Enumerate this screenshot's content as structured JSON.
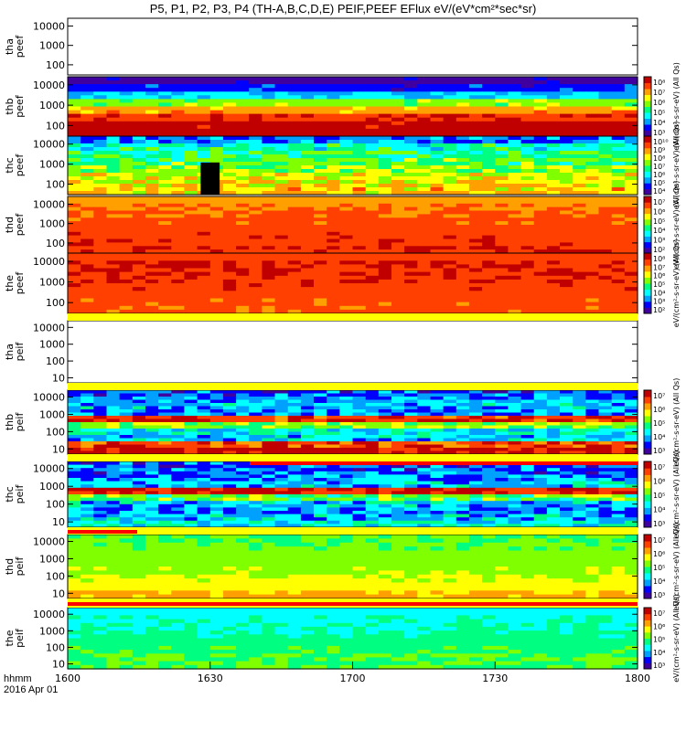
{
  "title": "P5, P1, P2, P3, P4 (TH-A,B,C,D,E) PEIF,PEEF EFlux eV/(eV*cm²*sec*sr)",
  "time_axis": {
    "row_label_1": "hhmm",
    "row_label_2": "2016 Apr 01",
    "ticks": [
      "1600",
      "1630",
      "1700",
      "1730",
      "1800"
    ]
  },
  "colors": {
    "spectrogram_scale": [
      "#ffffff",
      "#4000a0",
      "#0000ff",
      "#00a0ff",
      "#00ffff",
      "#00ff80",
      "#80ff00",
      "#ffff00",
      "#ffa000",
      "#ff4000",
      "#c00000"
    ],
    "fill_value": "#000000",
    "frame": "#000000"
  },
  "chart_data": [
    {
      "type": "heatmap",
      "panel": "tha-peef",
      "ylabel_lines": [
        "tha",
        "peef"
      ],
      "y_ticks": [
        "10000",
        "1000",
        "100"
      ],
      "ylim": [
        30,
        25000
      ],
      "yscale": "log",
      "x_range": [
        "16:00",
        "18:00"
      ],
      "has_data": false,
      "colorbar": null
    },
    {
      "type": "heatmap",
      "panel": "thb-peef",
      "ylabel_lines": [
        "thb",
        "peef"
      ],
      "y_ticks": [
        "10000",
        "1000",
        "100"
      ],
      "ylim": [
        30,
        25000
      ],
      "yscale": "log",
      "x_range": [
        "16:00",
        "18:00"
      ],
      "has_data": true,
      "profile": [
        0.05,
        0.15,
        0.3,
        0.55,
        0.75,
        0.88,
        0.95,
        0.98
      ],
      "noise": 0.06,
      "colorbar": {
        "ticks": [
          "10⁸",
          "10⁷",
          "10⁶",
          "10⁵",
          "10⁴",
          "10³"
        ],
        "label": "eV/(cm²-s-sr-eV) (All Qs)"
      }
    },
    {
      "type": "heatmap",
      "panel": "thc-peef",
      "ylabel_lines": [
        "thc",
        "peef"
      ],
      "y_ticks": [
        "10000",
        "1000",
        "100"
      ],
      "ylim": [
        30,
        25000
      ],
      "yscale": "log",
      "x_range": [
        "16:00",
        "18:00"
      ],
      "has_data": true,
      "profile": [
        0.25,
        0.4,
        0.45,
        0.5,
        0.55,
        0.62,
        0.68,
        0.7
      ],
      "noise": 0.12,
      "gap": [
        "16:28",
        "16:32"
      ],
      "colorbar": {
        "ticks": [
          "10¹⁰",
          "10⁹",
          "10⁸",
          "10⁷",
          "10⁶",
          "10⁵",
          "10⁴"
        ],
        "label": "eV/(cm²-s-sr-eV) (All Qs)"
      }
    },
    {
      "type": "heatmap",
      "panel": "thd-peef",
      "ylabel_lines": [
        "thd",
        "peef"
      ],
      "y_ticks": [
        "10000",
        "1000",
        "100"
      ],
      "ylim": [
        30,
        25000
      ],
      "yscale": "log",
      "x_range": [
        "16:00",
        "18:00"
      ],
      "has_data": true,
      "profile": [
        0.75,
        0.8,
        0.82,
        0.84,
        0.85,
        0.86,
        0.87,
        0.88
      ],
      "noise": 0.05,
      "colorbar": {
        "ticks": [
          "10⁷",
          "10⁶",
          "10⁵",
          "10⁴",
          "10³",
          "10²"
        ],
        "label": "eV/(cm²-s-sr-eV) (All Qs)"
      }
    },
    {
      "type": "heatmap",
      "panel": "the-peef",
      "ylabel_lines": [
        "the",
        "peef"
      ],
      "y_ticks": [
        "10000",
        "1000",
        "100"
      ],
      "ylim": [
        30,
        25000
      ],
      "yscale": "log",
      "x_range": [
        "16:00",
        "18:00"
      ],
      "has_data": true,
      "profile": [
        0.85,
        0.9,
        0.88,
        0.87,
        0.86,
        0.85,
        0.84,
        0.83
      ],
      "noise": 0.05,
      "colorbar": {
        "ticks": [
          "10⁸",
          "10⁷",
          "10⁶",
          "10⁵",
          "10⁴",
          "10³",
          "10²"
        ],
        "label": "eV/(cm²-s-sr-eV) (All Qs)"
      }
    },
    {
      "type": "heatmap",
      "panel": "tha-peif",
      "ylabel_lines": [
        "tha",
        "peif"
      ],
      "y_ticks": [
        "10000",
        "1000",
        "100",
        "10"
      ],
      "ylim": [
        5,
        25000
      ],
      "yscale": "log",
      "x_range": [
        "16:00",
        "18:00"
      ],
      "has_data": false,
      "colorbar": null
    },
    {
      "type": "heatmap",
      "panel": "thb-peif",
      "ylabel_lines": [
        "thb",
        "peif"
      ],
      "y_ticks": [
        "10000",
        "1000",
        "100",
        "10"
      ],
      "ylim": [
        5,
        25000
      ],
      "yscale": "log",
      "x_range": [
        "16:00",
        "18:00"
      ],
      "has_data": true,
      "profile": [
        0.2,
        0.25,
        0.3,
        0.25,
        0.9,
        0.55,
        0.35,
        0.3,
        0.85,
        0.95
      ],
      "noise": 0.12,
      "colorbar": {
        "ticks": [
          "10⁷",
          "10⁶",
          "10⁵",
          "10⁴",
          "10³"
        ],
        "label": "eV/(cm²-s-sr-eV) (All Qs)"
      }
    },
    {
      "type": "heatmap",
      "panel": "thc-peif",
      "ylabel_lines": [
        "thc",
        "peif"
      ],
      "y_ticks": [
        "10000",
        "1000",
        "100",
        "10"
      ],
      "ylim": [
        5,
        25000
      ],
      "yscale": "log",
      "x_range": [
        "16:00",
        "18:00"
      ],
      "has_data": true,
      "profile": [
        0.2,
        0.22,
        0.25,
        0.3,
        0.95,
        0.5,
        0.3,
        0.25,
        0.3,
        0.35
      ],
      "noise": 0.14,
      "colorbar": {
        "ticks": [
          "10⁷",
          "10⁶",
          "10⁵",
          "10⁴",
          "10³"
        ],
        "label": "eV/(cm²-s-sr-eV) (All Qs)"
      }
    },
    {
      "type": "heatmap",
      "panel": "thd-peif",
      "ylabel_lines": [
        "thd",
        "peif"
      ],
      "y_ticks": [
        "10000",
        "1000",
        "100",
        "10"
      ],
      "ylim": [
        5,
        25000
      ],
      "yscale": "log",
      "x_range": [
        "16:00",
        "18:00"
      ],
      "has_data": true,
      "profile": [
        0.5,
        0.52,
        0.54,
        0.56,
        0.58,
        0.62,
        0.66,
        0.72
      ],
      "noise": 0.04,
      "colorbar": {
        "ticks": [
          "10⁷",
          "10⁶",
          "10⁵",
          "10⁴",
          "10³"
        ],
        "label": "eV/(cm²-s-sr-eV) (All Qs)"
      }
    },
    {
      "type": "heatmap",
      "panel": "the-peif",
      "ylabel_lines": [
        "the",
        "peif"
      ],
      "y_ticks": [
        "10000",
        "1000",
        "100",
        "10"
      ],
      "ylim": [
        5,
        25000
      ],
      "yscale": "log",
      "x_range": [
        "16:00",
        "18:00"
      ],
      "has_data": true,
      "profile": [
        0.35,
        0.38,
        0.4,
        0.42,
        0.45,
        0.47,
        0.5,
        0.5
      ],
      "noise": 0.04,
      "colorbar": {
        "ticks": [
          "10⁷",
          "10⁶",
          "10⁵",
          "10⁴",
          "10³"
        ],
        "label": "eV/(cm²-s-sr-eV) (All Qs)"
      }
    }
  ]
}
